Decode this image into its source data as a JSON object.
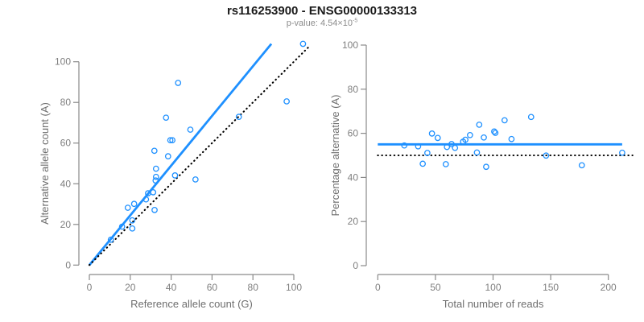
{
  "header": {
    "title": "rs116253900 - ENSG00000133313",
    "p_value_label": "p-value: 4.54×10",
    "p_value_exponent": "-5"
  },
  "colors": {
    "accent_blue": "#1E90FF",
    "identity_black": "#000000",
    "axis_line": "#8a8a8a",
    "tick_text": "#7f7f7f",
    "axis_title_text": "#6e6e6e",
    "title_text": "#1a1a1a",
    "subtitle_text": "#8c8c8c"
  },
  "chart_data": [
    {
      "type": "scatter",
      "name": "allele-counts",
      "xlabel": "Reference allele count (G)",
      "ylabel": "Alternative allele count (A)",
      "xticks": [
        0,
        20,
        40,
        60,
        80,
        100
      ],
      "yticks": [
        0,
        20,
        40,
        60,
        80,
        100
      ],
      "xlim": [
        0,
        107
      ],
      "ylim": [
        0,
        110
      ],
      "grid": false,
      "points": [
        [
          10.5,
          12.5
        ],
        [
          16,
          18.9
        ],
        [
          21,
          18
        ],
        [
          21,
          22
        ],
        [
          18.8,
          28.2
        ],
        [
          21.9,
          30.1
        ],
        [
          31.9,
          27.1
        ],
        [
          27.7,
          32.3
        ],
        [
          28.7,
          35.3
        ],
        [
          31.2,
          35.8
        ],
        [
          32.4,
          41.6
        ],
        [
          32.6,
          43.4
        ],
        [
          32.6,
          47.4
        ],
        [
          41.9,
          44.1
        ],
        [
          31.8,
          56.2
        ],
        [
          38.5,
          53.5
        ],
        [
          51.9,
          42.1
        ],
        [
          39.6,
          61.4
        ],
        [
          40.6,
          61.4
        ],
        [
          37.5,
          72.5
        ],
        [
          49.4,
          66.6
        ],
        [
          43.4,
          89.6
        ],
        [
          73.1,
          72.9
        ],
        [
          96.5,
          80.5
        ],
        [
          104.5,
          108.8
        ]
      ],
      "lines": [
        {
          "name": "fit-line",
          "style": "solid",
          "color": "#1E90FF",
          "from": [
            0,
            0
          ],
          "to": [
            89,
            108.8
          ]
        },
        {
          "name": "identity-line",
          "style": "dotted",
          "color": "#000000",
          "from": [
            0,
            0
          ],
          "to": [
            108,
            108
          ]
        }
      ]
    },
    {
      "type": "scatter",
      "name": "percentage-vs-reads",
      "xlabel": "Total number of reads",
      "ylabel": "Percentage alternative (A)",
      "xticks": [
        0,
        50,
        100,
        150,
        200
      ],
      "yticks": [
        0,
        20,
        40,
        60,
        80,
        100
      ],
      "xlim": [
        0,
        221
      ],
      "ylim": [
        0,
        100
      ],
      "grid": false,
      "points": [
        [
          23,
          54.5
        ],
        [
          35,
          54.1
        ],
        [
          39,
          46.2
        ],
        [
          43,
          51.1
        ],
        [
          47,
          59.9
        ],
        [
          52,
          57.9
        ],
        [
          59,
          46
        ],
        [
          60,
          53.8
        ],
        [
          64,
          55.1
        ],
        [
          67,
          53.4
        ],
        [
          74,
          56.2
        ],
        [
          76,
          57.1
        ],
        [
          80,
          59.2
        ],
        [
          86,
          51.3
        ],
        [
          88,
          63.9
        ],
        [
          92,
          58.1
        ],
        [
          94,
          44.8
        ],
        [
          101,
          60.8
        ],
        [
          102,
          60.2
        ],
        [
          110,
          65.9
        ],
        [
          116,
          57.4
        ],
        [
          133,
          67.4
        ],
        [
          146,
          49.9
        ],
        [
          177,
          45.5
        ],
        [
          212,
          51.2
        ]
      ],
      "lines": [
        {
          "name": "mean-percentage-line",
          "style": "solid",
          "color": "#1E90FF",
          "from": [
            0,
            55
          ],
          "to": [
            212,
            55
          ]
        },
        {
          "name": "expected-50-percent-line",
          "style": "dotted",
          "color": "#000000",
          "from": [
            0,
            50
          ],
          "to": [
            221,
            50
          ]
        }
      ]
    }
  ]
}
